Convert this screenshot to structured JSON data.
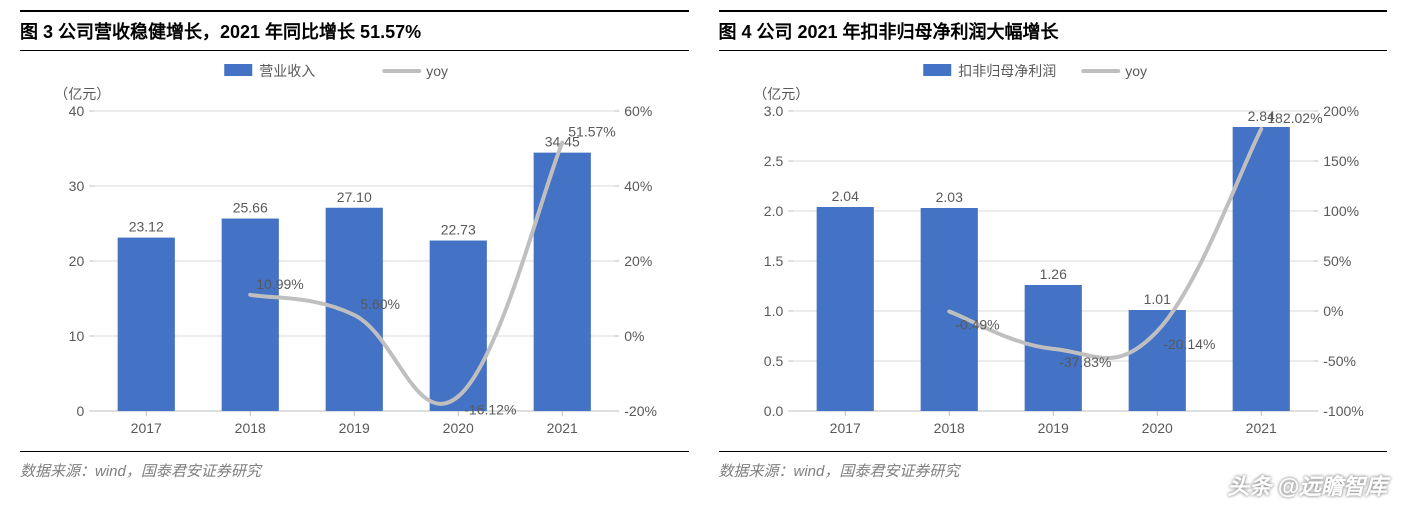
{
  "watermark": "头条 @远瞻智库",
  "panels": [
    {
      "title": "图 3 公司营收稳健增长，2021 年同比增长 51.57%",
      "source": "数据来源：wind，国泰君安证券研究",
      "chart": {
        "type": "bar+line",
        "bar_color": "#4472c4",
        "line_color": "#bfbfbf",
        "grid_color": "#d9d9d9",
        "background": "#ffffff",
        "font_color": "#595959",
        "label_fontsize": 14,
        "bar_width": 0.55,
        "line_width": 4,
        "y1_unit": "（亿元）",
        "y1_min": 0,
        "y1_max": 40,
        "y1_step": 10,
        "y2_min": -20,
        "y2_max": 60,
        "y2_step": 20,
        "y2_suffix": "%",
        "categories": [
          "2017",
          "2018",
          "2019",
          "2020",
          "2021"
        ],
        "bar_series": {
          "name": "营业收入",
          "values": [
            23.12,
            25.66,
            27.1,
            22.73,
            34.45
          ]
        },
        "line_series": {
          "name": "yoy",
          "values": [
            null,
            10.99,
            5.6,
            -16.12,
            51.57
          ],
          "label_suffix": "%"
        }
      }
    },
    {
      "title": "图 4 公司 2021 年扣非归母净利润大幅增长",
      "source": "数据来源：wind，国泰君安证券研究",
      "chart": {
        "type": "bar+line",
        "bar_color": "#4472c4",
        "line_color": "#bfbfbf",
        "grid_color": "#d9d9d9",
        "background": "#ffffff",
        "font_color": "#595959",
        "label_fontsize": 14,
        "bar_width": 0.55,
        "line_width": 4,
        "y1_unit": "（亿元）",
        "y1_min": 0.0,
        "y1_max": 3.0,
        "y1_step": 0.5,
        "y2_min": -100,
        "y2_max": 200,
        "y2_step": 50,
        "y2_suffix": "%",
        "categories": [
          "2017",
          "2018",
          "2019",
          "2020",
          "2021"
        ],
        "bar_series": {
          "name": "扣非归母净利润",
          "values": [
            2.04,
            2.03,
            1.26,
            1.01,
            2.84
          ]
        },
        "line_series": {
          "name": "yoy",
          "values": [
            null,
            -0.49,
            -37.83,
            -20.14,
            182.02
          ],
          "label_suffix": "%"
        }
      }
    }
  ]
}
